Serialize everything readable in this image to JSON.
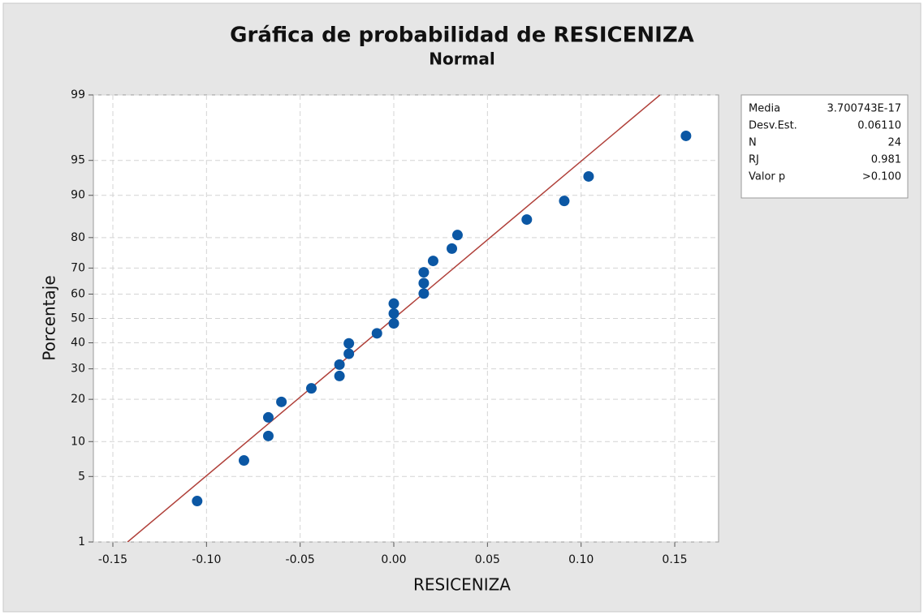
{
  "chart_data": {
    "type": "scatter",
    "title": "Gráfica de probabilidad de RESICENIZA",
    "subtitle": "Normal",
    "xlabel": "RESICENIZA",
    "ylabel": "Porcentaje",
    "yscale": "normal-probability",
    "grid": true,
    "color": "#0b57a4",
    "line_color": "#b0403a",
    "legend": "right",
    "x": [
      -0.105,
      -0.08,
      -0.067,
      -0.067,
      -0.06,
      -0.044,
      -0.029,
      -0.029,
      -0.024,
      -0.024,
      -0.009,
      0.0,
      0.0,
      0.0,
      0.016,
      0.016,
      0.016,
      0.021,
      0.031,
      0.034,
      0.071,
      0.091,
      0.104,
      0.156
    ],
    "values": [
      2.87,
      6.97,
      11.07,
      15.16,
      19.26,
      23.36,
      27.46,
      31.56,
      35.66,
      39.75,
      43.85,
      47.95,
      52.05,
      56.15,
      60.25,
      64.34,
      68.44,
      72.54,
      76.64,
      80.74,
      84.84,
      88.93,
      93.03,
      97.13
    ],
    "xlim": [
      -0.1604,
      0.1734
    ],
    "xticks": [
      -0.15,
      {
        "value": -0.1,
        "label": "-0.10"
      },
      -0.05,
      {
        "value": 0,
        "label": "0.00"
      },
      0.05,
      {
        "value": 0.1,
        "label": "0.10"
      },
      0.15
    ],
    "ylim": [
      1,
      99
    ],
    "yticks": [
      1,
      5,
      10,
      20,
      30,
      40,
      50,
      60,
      70,
      80,
      90,
      95,
      99
    ],
    "stats": [
      {
        "label": "Media",
        "value": {
          "value": 3.700743e-17,
          "label": "3.700743E-17"
        }
      },
      {
        "label": "Desv.Est.",
        "value": {
          "value": 0.0611,
          "label": "0.06110"
        }
      },
      {
        "label": "N",
        "value": 24
      },
      {
        "label": "RJ",
        "value": 0.981
      },
      {
        "label": "Valor p",
        "value": ">0.100"
      }
    ]
  }
}
